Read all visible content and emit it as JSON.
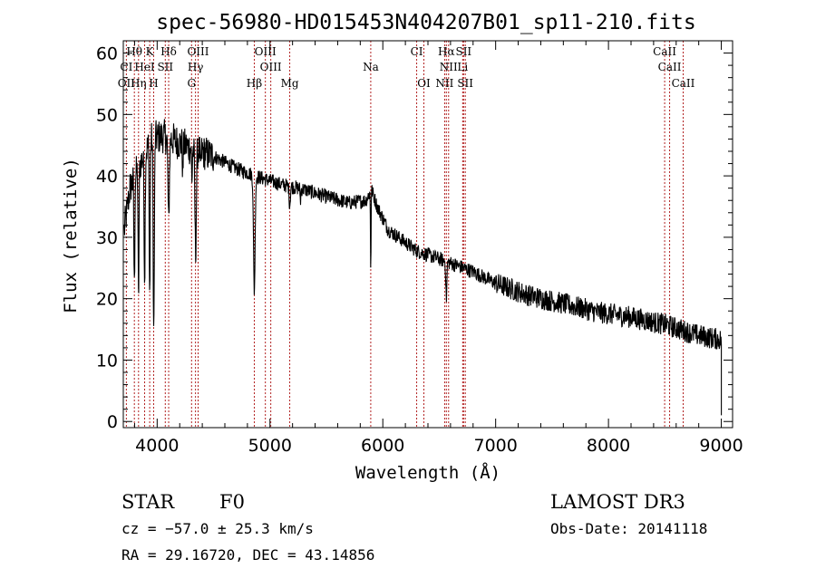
{
  "chart_data": {
    "type": "line",
    "title": "spec-56980-HD015453N404207B01_sp11-210.fits",
    "xlabel": "Wavelength (Å)",
    "ylabel": "Flux (relative)",
    "xlim": [
      3700,
      9100
    ],
    "ylim": [
      -1,
      62
    ],
    "x_ticks": [
      4000,
      5000,
      6000,
      7000,
      8000,
      9000
    ],
    "y_ticks": [
      0,
      10,
      20,
      30,
      40,
      50,
      60
    ],
    "continuum": [
      [
        3700,
        30
      ],
      [
        3760,
        38
      ],
      [
        3850,
        42
      ],
      [
        3950,
        46
      ],
      [
        4050,
        46.5
      ],
      [
        4150,
        45.8
      ],
      [
        4300,
        44.5
      ],
      [
        4500,
        43.2
      ],
      [
        4700,
        41.2
      ],
      [
        4900,
        39.8
      ],
      [
        5100,
        38.6
      ],
      [
        5300,
        37.8
      ],
      [
        5500,
        36.6
      ],
      [
        5700,
        35.6
      ],
      [
        5850,
        36.0
      ],
      [
        5900,
        37.8
      ],
      [
        5950,
        35.0
      ],
      [
        6050,
        31.2
      ],
      [
        6300,
        27.8
      ],
      [
        6600,
        25.8
      ],
      [
        6800,
        24.4
      ],
      [
        7000,
        22.5
      ],
      [
        7300,
        20.5
      ],
      [
        7600,
        19.2
      ],
      [
        7900,
        17.8
      ],
      [
        8200,
        17.0
      ],
      [
        8500,
        15.8
      ],
      [
        8800,
        14.0
      ],
      [
        9000,
        13.3
      ]
    ],
    "absorption_features": [
      [
        3798,
        4.0,
        18
      ],
      [
        3835,
        4.0,
        22
      ],
      [
        3889,
        4.5,
        20
      ],
      [
        3934,
        4.0,
        25
      ],
      [
        3970,
        5.0,
        32
      ],
      [
        4102,
        6.0,
        14
      ],
      [
        4227,
        3.0,
        5
      ],
      [
        4308,
        3.0,
        6
      ],
      [
        4341,
        6.0,
        17
      ],
      [
        4384,
        3.0,
        4
      ],
      [
        4861,
        7.0,
        19
      ],
      [
        5175,
        5.0,
        3
      ],
      [
        5270,
        3.0,
        2
      ],
      [
        5893,
        2.5,
        13
      ],
      [
        6563,
        4.5,
        6
      ]
    ],
    "noise_amplitude": 1.2,
    "lines": [
      {
        "label": "Hθ",
        "wavelength": 3798,
        "row": 0
      },
      {
        "label": "K",
        "wavelength": 3934,
        "row": 0
      },
      {
        "label": "Hδ",
        "wavelength": 4102,
        "row": 0
      },
      {
        "label": "OIII",
        "wavelength": 4363,
        "row": 0
      },
      {
        "label": "OIII",
        "wavelength": 4959,
        "row": 0
      },
      {
        "label": "CI",
        "wavelength": 6300,
        "row": 0
      },
      {
        "label": "Hα",
        "wavelength": 6563,
        "row": 0
      },
      {
        "label": "SII",
        "wavelength": 6716,
        "row": 0
      },
      {
        "label": "CaII",
        "wavelength": 8498,
        "row": 0
      },
      {
        "label": "CI",
        "wavelength": 3727,
        "row": 1
      },
      {
        "label": "HeI",
        "wavelength": 3889,
        "row": 1
      },
      {
        "label": "SII",
        "wavelength": 4072,
        "row": 1
      },
      {
        "label": "Hγ",
        "wavelength": 4340,
        "row": 1
      },
      {
        "label": "OIII",
        "wavelength": 5007,
        "row": 1
      },
      {
        "label": "Na",
        "wavelength": 5893,
        "row": 1
      },
      {
        "label": "NII",
        "wavelength": 6583,
        "row": 1
      },
      {
        "label": "Li",
        "wavelength": 6708,
        "row": 1
      },
      {
        "label": "CaII",
        "wavelength": 8542,
        "row": 1
      },
      {
        "label": "OII",
        "wavelength": 3727,
        "row": 2
      },
      {
        "label": "Hη",
        "wavelength": 3835,
        "row": 2
      },
      {
        "label": "H",
        "wavelength": 3969,
        "row": 2
      },
      {
        "label": "G",
        "wavelength": 4305,
        "row": 2
      },
      {
        "label": "Hβ",
        "wavelength": 4861,
        "row": 2
      },
      {
        "label": "Mg",
        "wavelength": 5175,
        "row": 2
      },
      {
        "label": "OI",
        "wavelength": 6364,
        "row": 2
      },
      {
        "label": "NII",
        "wavelength": 6548,
        "row": 2
      },
      {
        "label": "SII",
        "wavelength": 6731,
        "row": 2
      },
      {
        "label": "CaII",
        "wavelength": 8662,
        "row": 2
      }
    ],
    "line_marker_color": "#b22222"
  },
  "info": {
    "object_class": "STAR",
    "subclass": "F0",
    "redshift": "cz = −57.0 ± 25.3 km/s",
    "coords": "RA =  29.16720, DEC =  43.14856",
    "survey": "LAMOST DR3",
    "obs_date": "Obs-Date: 20141118"
  }
}
